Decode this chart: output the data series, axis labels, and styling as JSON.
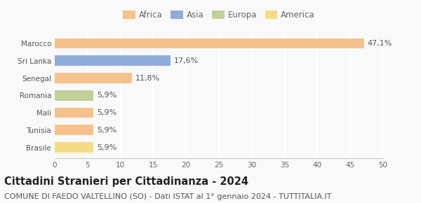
{
  "categories": [
    "Brasile",
    "Tunisia",
    "Mali",
    "Romania",
    "Senegal",
    "Sri Lanka",
    "Marocco"
  ],
  "values": [
    5.9,
    5.9,
    5.9,
    5.9,
    11.8,
    17.6,
    47.1
  ],
  "labels": [
    "5,9%",
    "5,9%",
    "5,9%",
    "5,9%",
    "11,8%",
    "17,6%",
    "47,1%"
  ],
  "colors": [
    "#f5d76e",
    "#f5b87a",
    "#f5b87a",
    "#b5c98a",
    "#f5b87a",
    "#7b9fd4",
    "#f5b87a"
  ],
  "continent_colors": {
    "Africa": "#f5b87a",
    "Asia": "#7b9fd4",
    "Europa": "#b5c98a",
    "America": "#f5d76e"
  },
  "legend_labels": [
    "Africa",
    "Asia",
    "Europa",
    "America"
  ],
  "xlim": [
    0,
    50
  ],
  "xticks": [
    0,
    5,
    10,
    15,
    20,
    25,
    30,
    35,
    40,
    45,
    50
  ],
  "title": "Cittadini Stranieri per Cittadinanza - 2024",
  "subtitle": "COMUNE DI FAEDO VALTELLINO (SO) - Dati ISTAT al 1° gennaio 2024 - TUTTITALIA.IT",
  "bg_color": "#f9f9f9",
  "bar_alpha": 0.85,
  "title_fontsize": 10.5,
  "subtitle_fontsize": 8,
  "label_fontsize": 8,
  "tick_fontsize": 7.5,
  "legend_fontsize": 8.5
}
